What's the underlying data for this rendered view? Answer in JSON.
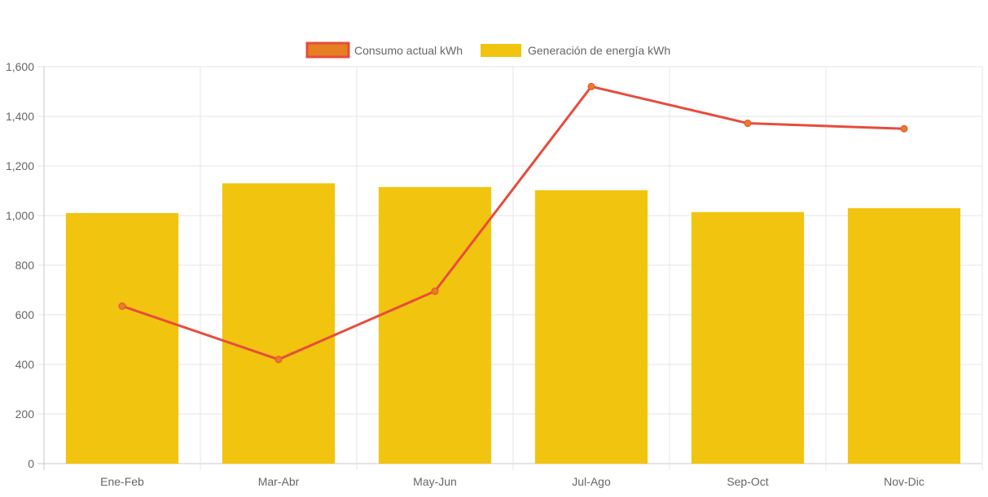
{
  "chart_data": {
    "type": "bar",
    "categories": [
      "Ene-Feb",
      "Mar-Abr",
      "May-Jun",
      "Jul-Ago",
      "Sep-Oct",
      "Nov-Dic"
    ],
    "series": [
      {
        "name": "Consumo actual kWh",
        "type": "line",
        "color": "#e74c3c",
        "point_color": "#e67e22",
        "values": [
          635,
          420,
          695,
          1520,
          1372,
          1350
        ]
      },
      {
        "name": "Generación de energía kWh",
        "type": "bar",
        "color": "#f1c40f",
        "values": [
          1010,
          1130,
          1115,
          1102,
          1014,
          1030
        ]
      }
    ],
    "y_ticks": [
      "0",
      "200",
      "400",
      "600",
      "800",
      "1,000",
      "1,200",
      "1,400",
      "1,600"
    ],
    "ylim": [
      0,
      1600
    ],
    "grid": true,
    "legend_position": "top-center"
  }
}
